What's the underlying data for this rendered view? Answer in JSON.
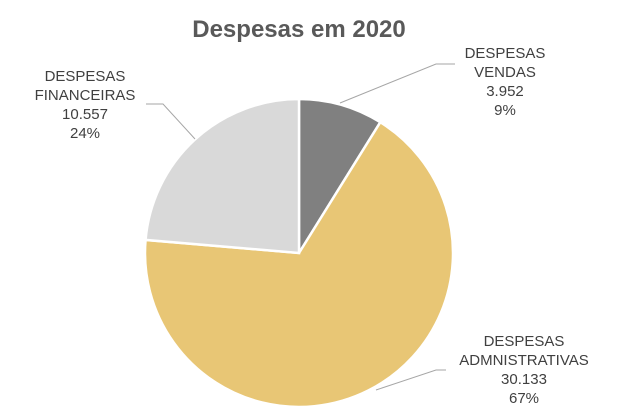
{
  "chart_data": {
    "type": "pie",
    "title": "Despesas em 2020",
    "slices": [
      {
        "name": "DESPESAS VENDAS",
        "label_lines": [
          "DESPESAS",
          "VENDAS"
        ],
        "value": 3952,
        "value_label": "3.952",
        "percent_label": "9%",
        "color": "#808080"
      },
      {
        "name": "DESPESAS ADMNISTRATIVAS",
        "label_lines": [
          "DESPESAS",
          "ADMNISTRATIVAS"
        ],
        "value": 30133,
        "value_label": "30.133",
        "percent_label": "67%",
        "color": "#e8c675"
      },
      {
        "name": "DESPESAS FINANCEIRAS",
        "label_lines": [
          "DESPESAS",
          "FINANCEIRAS"
        ],
        "value": 10557,
        "value_label": "10.557",
        "percent_label": "24%",
        "color": "#d9d9d9"
      }
    ],
    "start_angle_deg": 0,
    "direction": "clockwise",
    "legend": "none",
    "data_labels": "outside-with-leader-lines"
  }
}
